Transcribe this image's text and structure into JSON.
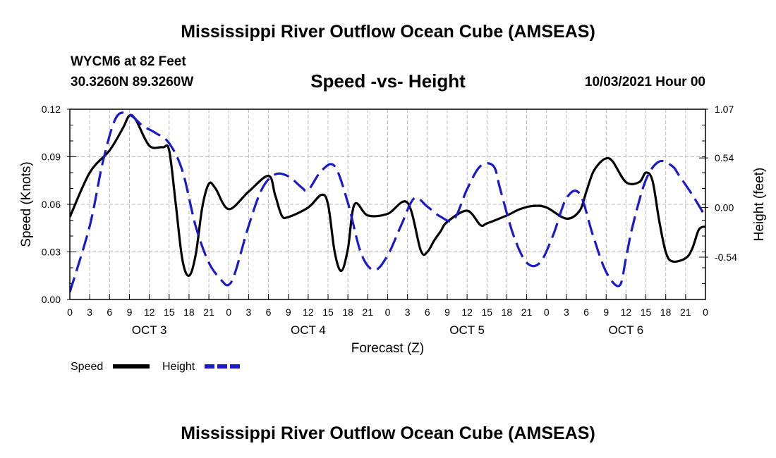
{
  "page": {
    "title_top": "Mississippi River Outflow Ocean Cube (AMSEAS)",
    "title_bottom": "Mississippi River Outflow Ocean Cube (AMSEAS)",
    "station": "WYCM6 at 82 Feet",
    "coords": "30.3260N  89.3260W",
    "subtitle": "Speed -vs- Height",
    "datetime": "10/03/2021 Hour 00"
  },
  "colors": {
    "speed": "#000000",
    "height": "#1a1acc",
    "grid": "#b8b8b8"
  },
  "chart_data": {
    "type": "line",
    "title": "Speed -vs- Height",
    "xlabel": "Forecast (Z)",
    "ylabel": "Speed (Knots)",
    "y2label": "Height (feet)",
    "x_range": [
      0,
      96
    ],
    "ylim": [
      0.0,
      0.12
    ],
    "y2lim": [
      -1.0,
      1.07
    ],
    "x_ticks": [
      0,
      3,
      6,
      9,
      12,
      15,
      18,
      21,
      24,
      27,
      30,
      33,
      36,
      39,
      42,
      45,
      48,
      51,
      54,
      57,
      60,
      63,
      66,
      69,
      72,
      75,
      78,
      81,
      84,
      87,
      90,
      93,
      96
    ],
    "x_tick_labels": [
      "0",
      "3",
      "6",
      "9",
      "12",
      "15",
      "18",
      "21",
      "0",
      "3",
      "6",
      "9",
      "12",
      "15",
      "18",
      "21",
      "0",
      "3",
      "6",
      "9",
      "12",
      "15",
      "18",
      "21",
      "0",
      "3",
      "6",
      "9",
      "12",
      "15",
      "18",
      "21",
      "0"
    ],
    "day_labels": [
      {
        "x": 12,
        "label": "OCT 3"
      },
      {
        "x": 36,
        "label": "OCT 4"
      },
      {
        "x": 60,
        "label": "OCT 5"
      },
      {
        "x": 84,
        "label": "OCT 6"
      }
    ],
    "y_ticks": [
      0.0,
      0.03,
      0.06,
      0.09,
      0.12
    ],
    "y_tick_labels": [
      "0.00",
      "0.03",
      "0.06",
      "0.09",
      "0.12"
    ],
    "y2_ticks": [
      -0.54,
      0.0,
      0.54,
      1.07
    ],
    "y2_tick_labels": [
      "-0.54",
      "0.00",
      "0.54",
      "1.07"
    ],
    "grid": true,
    "legend": [
      {
        "name": "Speed",
        "style": "solid"
      },
      {
        "name": "Height",
        "style": "dashed"
      }
    ],
    "series": [
      {
        "name": "Speed",
        "axis": "left",
        "style": "solid",
        "x": [
          0,
          3,
          6,
          8,
          9,
          10,
          12,
          14,
          15,
          16,
          17,
          18,
          19,
          20,
          21,
          22,
          24,
          27,
          30,
          31,
          32,
          33,
          36,
          38,
          39,
          40,
          41,
          42,
          43,
          45,
          48,
          51,
          53,
          54,
          55,
          56,
          57,
          60,
          62,
          63,
          66,
          68,
          70,
          72,
          75,
          77,
          78,
          79,
          80,
          81,
          82,
          84,
          86,
          87,
          88,
          89,
          90,
          91,
          93,
          94,
          95,
          96
        ],
        "values": [
          0.052,
          0.08,
          0.094,
          0.108,
          0.116,
          0.113,
          0.097,
          0.096,
          0.094,
          0.06,
          0.025,
          0.015,
          0.028,
          0.058,
          0.073,
          0.07,
          0.057,
          0.068,
          0.078,
          0.066,
          0.053,
          0.052,
          0.058,
          0.066,
          0.06,
          0.03,
          0.018,
          0.032,
          0.06,
          0.053,
          0.054,
          0.061,
          0.031,
          0.03,
          0.037,
          0.043,
          0.049,
          0.056,
          0.047,
          0.048,
          0.053,
          0.057,
          0.059,
          0.058,
          0.051,
          0.056,
          0.068,
          0.08,
          0.086,
          0.089,
          0.087,
          0.074,
          0.074,
          0.08,
          0.075,
          0.05,
          0.03,
          0.024,
          0.026,
          0.032,
          0.044,
          0.046
        ]
      },
      {
        "name": "Height",
        "axis": "right",
        "style": "dashed",
        "x": [
          0,
          3,
          5,
          7,
          9,
          11,
          13,
          15,
          17,
          19,
          21,
          23,
          24,
          25,
          27,
          29,
          31,
          33,
          35,
          36,
          38,
          40,
          42,
          44,
          46,
          48,
          50,
          52,
          54,
          56,
          58,
          60,
          62,
          64,
          65,
          67,
          69,
          71,
          73,
          75,
          77,
          79,
          81,
          83,
          84,
          85,
          87,
          89,
          91,
          92,
          94,
          96
        ],
        "values": [
          -0.92,
          -0.2,
          0.5,
          0.98,
          1.01,
          0.89,
          0.81,
          0.7,
          0.4,
          -0.2,
          -0.6,
          -0.8,
          -0.84,
          -0.7,
          -0.2,
          0.2,
          0.36,
          0.34,
          0.22,
          0.19,
          0.4,
          0.45,
          0.05,
          -0.5,
          -0.68,
          -0.52,
          -0.2,
          0.1,
          0.01,
          -0.1,
          -0.13,
          0.2,
          0.45,
          0.45,
          0.2,
          -0.3,
          -0.6,
          -0.6,
          -0.3,
          0.1,
          0.15,
          -0.3,
          -0.7,
          -0.85,
          -0.55,
          -0.2,
          0.3,
          0.5,
          0.45,
          0.35,
          0.14,
          -0.1
        ]
      }
    ]
  }
}
